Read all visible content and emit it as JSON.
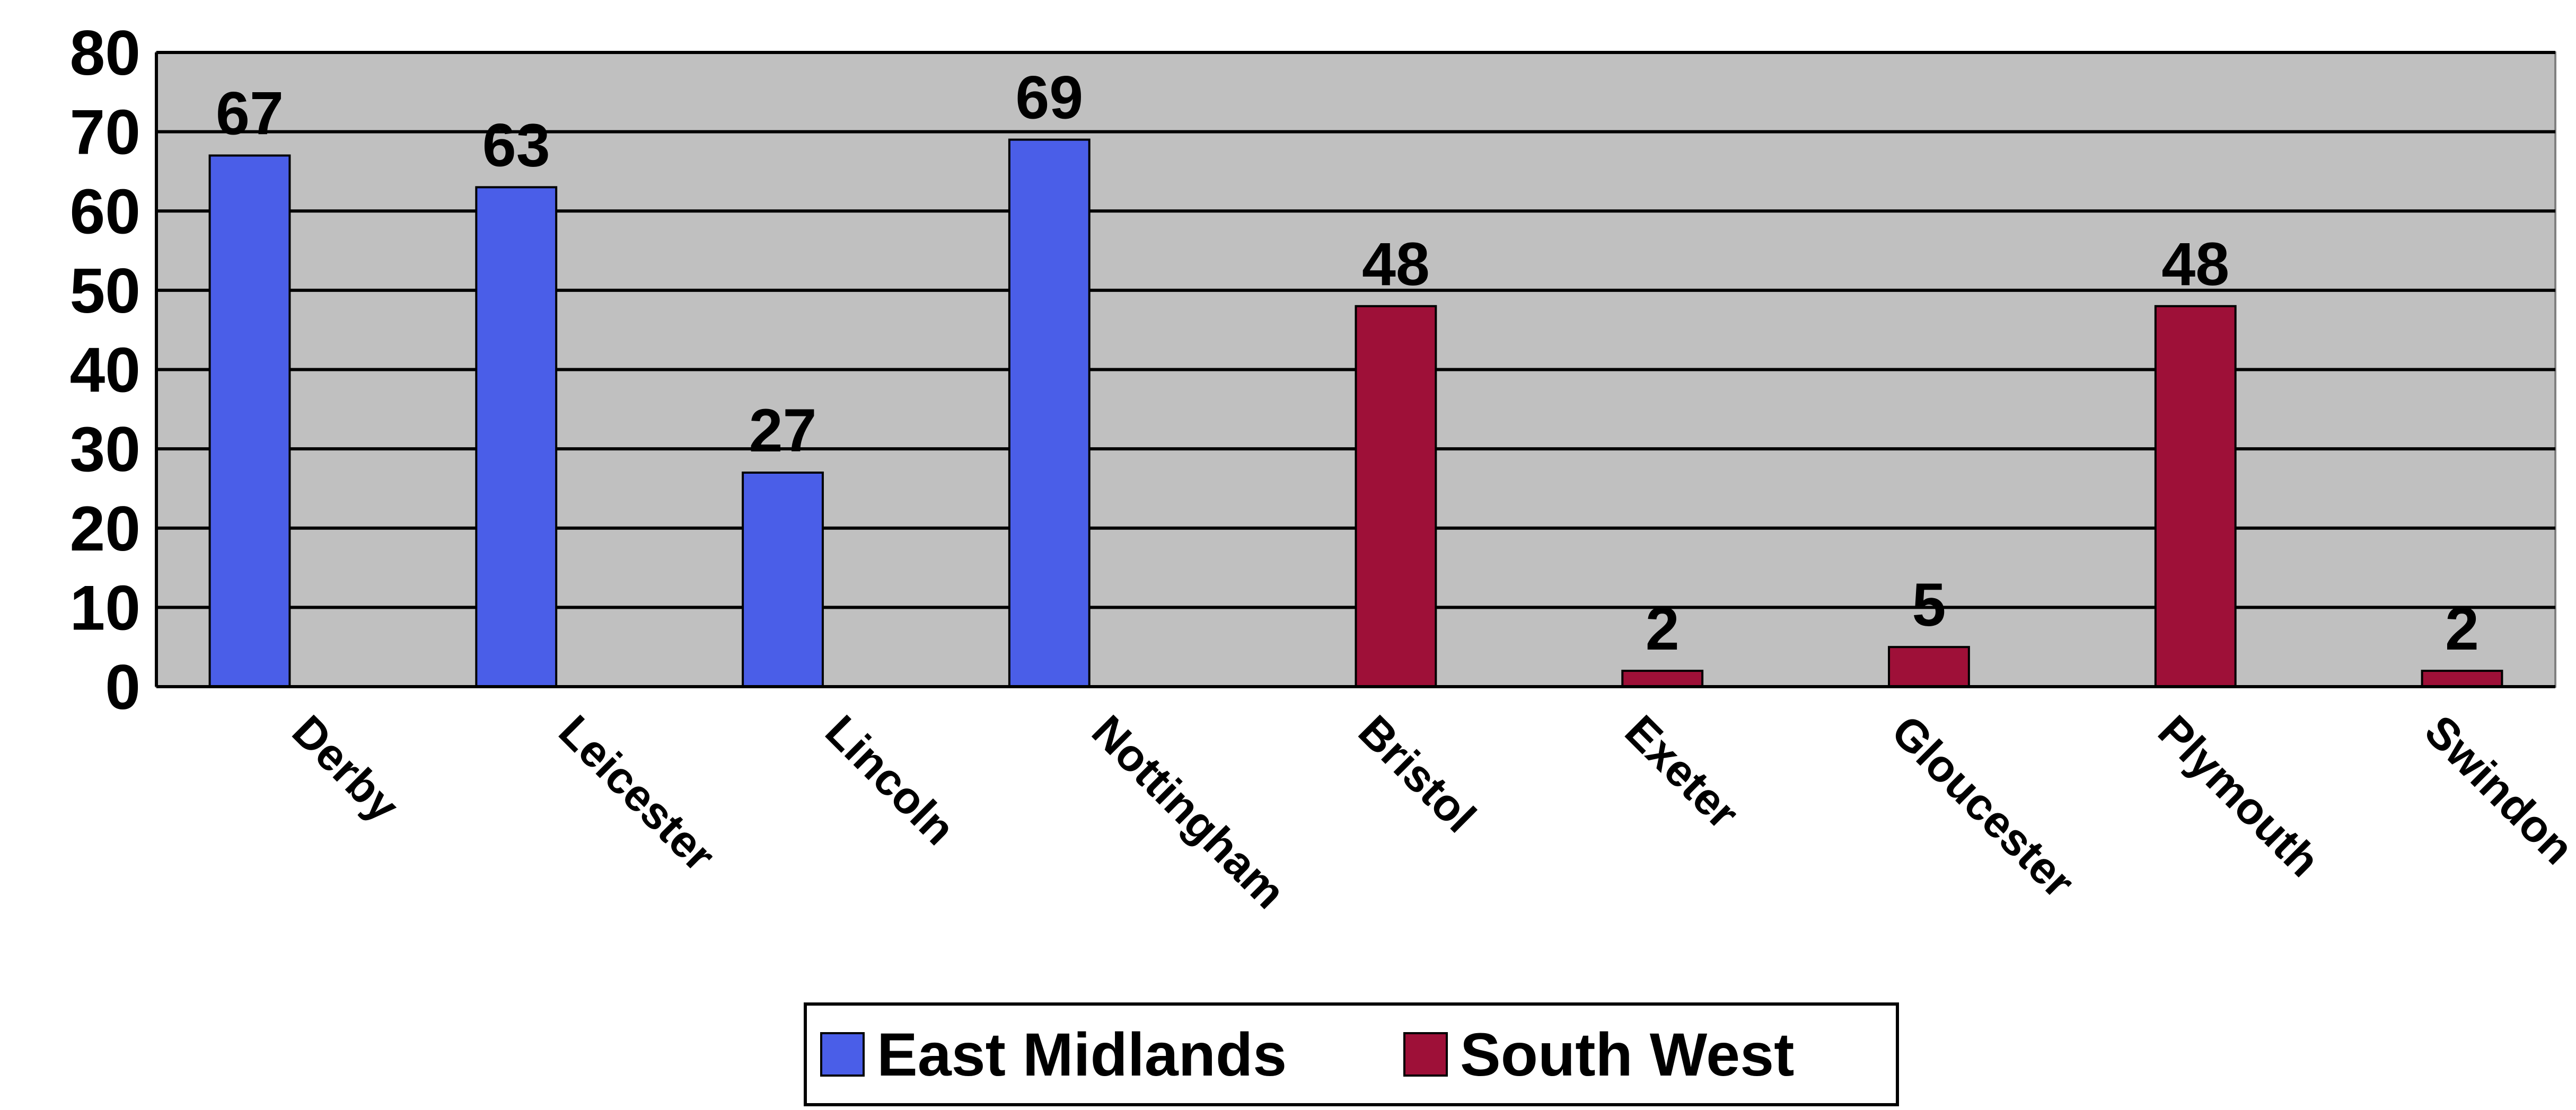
{
  "chart_data": {
    "type": "bar",
    "categories": [
      "Derby",
      "Leicester",
      "Lincoln",
      "Nottingham",
      "Bristol",
      "Exeter",
      "Gloucester",
      "Plymouth",
      "Swindon"
    ],
    "series": [
      {
        "name": "East Midlands",
        "color": "#4a5ee8",
        "values": [
          67,
          63,
          27,
          69,
          null,
          null,
          null,
          null,
          null
        ]
      },
      {
        "name": "South West",
        "color": "#9e1038",
        "values": [
          null,
          null,
          null,
          null,
          48,
          2,
          5,
          48,
          2
        ]
      }
    ],
    "ylim": [
      0,
      80
    ],
    "yticks": [
      0,
      10,
      20,
      30,
      40,
      50,
      60,
      70,
      80
    ],
    "grid": true,
    "legend": "bottom"
  }
}
